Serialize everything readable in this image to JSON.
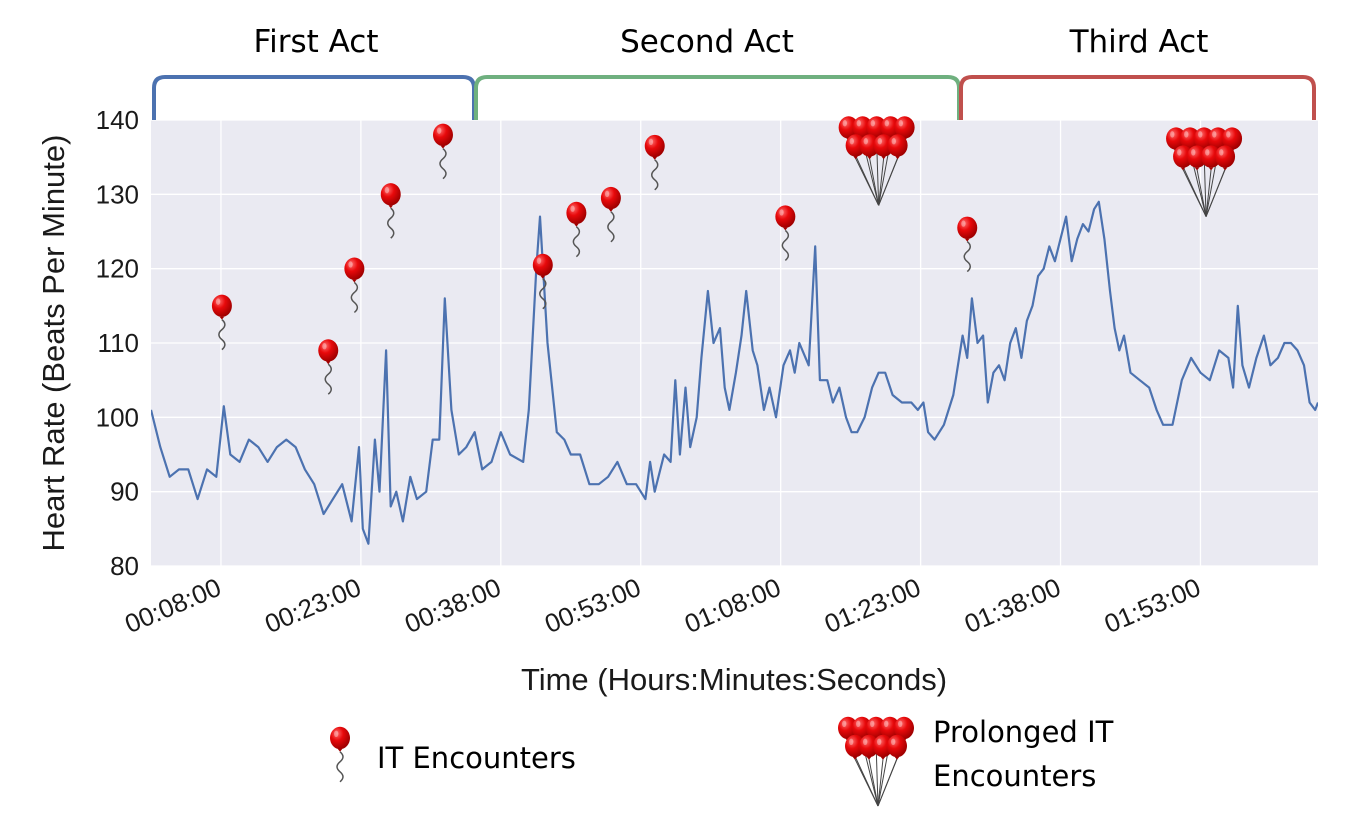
{
  "chart_data": {
    "type": "line",
    "xlabel": "Time (Hours:Minutes:Seconds)",
    "ylabel": "Heart Rate (Beats Per Minute)",
    "ylim": [
      80,
      140
    ],
    "xlim_minutes": [
      0.5,
      125.6
    ],
    "yticks": [
      80,
      90,
      100,
      110,
      120,
      130,
      140
    ],
    "xticks": [
      {
        "minute": 8,
        "label": "00:08:00"
      },
      {
        "minute": 23,
        "label": "00:23:00"
      },
      {
        "minute": 38,
        "label": "00:38:00"
      },
      {
        "minute": 53,
        "label": "00:53:00"
      },
      {
        "minute": 68,
        "label": "01:08:00"
      },
      {
        "minute": 83,
        "label": "01:23:00"
      },
      {
        "minute": 98,
        "label": "01:38:00"
      },
      {
        "minute": 113,
        "label": "01:53:00"
      }
    ],
    "grid": true,
    "series": [
      {
        "color": "#4c72b0",
        "points": [
          [
            0.5,
            101
          ],
          [
            1.5,
            96
          ],
          [
            2.5,
            92
          ],
          [
            3.5,
            93
          ],
          [
            4.5,
            93
          ],
          [
            5.5,
            89
          ],
          [
            6.5,
            93
          ],
          [
            7.5,
            92
          ],
          [
            8.3,
            101.5
          ],
          [
            9,
            95
          ],
          [
            10,
            94
          ],
          [
            11,
            97
          ],
          [
            12,
            96
          ],
          [
            13,
            94
          ],
          [
            14,
            96
          ],
          [
            15,
            97
          ],
          [
            16,
            96
          ],
          [
            17,
            93
          ],
          [
            18,
            91
          ],
          [
            19,
            87
          ],
          [
            20,
            89
          ],
          [
            21,
            91
          ],
          [
            22,
            86
          ],
          [
            22.8,
            96
          ],
          [
            23.2,
            85
          ],
          [
            23.8,
            83
          ],
          [
            24.5,
            97
          ],
          [
            25,
            90
          ],
          [
            25.7,
            109
          ],
          [
            26.2,
            88
          ],
          [
            26.8,
            90
          ],
          [
            27.5,
            86
          ],
          [
            28.3,
            92
          ],
          [
            29,
            89
          ],
          [
            30,
            90
          ],
          [
            30.7,
            97
          ],
          [
            31.4,
            97
          ],
          [
            32,
            116
          ],
          [
            32.7,
            101
          ],
          [
            33.5,
            95
          ],
          [
            34.3,
            96
          ],
          [
            35.2,
            98
          ],
          [
            36,
            93
          ],
          [
            37,
            94
          ],
          [
            38,
            98
          ],
          [
            39,
            95
          ],
          [
            40.4,
            94
          ],
          [
            41,
            101
          ],
          [
            41.8,
            120
          ],
          [
            42.2,
            127
          ],
          [
            43,
            110
          ],
          [
            44,
            98
          ],
          [
            44.8,
            97
          ],
          [
            45.5,
            95
          ],
          [
            46.5,
            95
          ],
          [
            47.5,
            91
          ],
          [
            48.5,
            91
          ],
          [
            49.5,
            92
          ],
          [
            50.5,
            94
          ],
          [
            51.5,
            91
          ],
          [
            52.5,
            91
          ],
          [
            53.5,
            89
          ],
          [
            54,
            94
          ],
          [
            54.5,
            90
          ],
          [
            55.5,
            95
          ],
          [
            56.2,
            94
          ],
          [
            56.7,
            105
          ],
          [
            57.2,
            95
          ],
          [
            57.8,
            104
          ],
          [
            58.3,
            96
          ],
          [
            59,
            100
          ],
          [
            59.5,
            108
          ],
          [
            60.2,
            117
          ],
          [
            60.8,
            110
          ],
          [
            61.5,
            112
          ],
          [
            62,
            104
          ],
          [
            62.5,
            101
          ],
          [
            63.2,
            106
          ],
          [
            63.8,
            111
          ],
          [
            64.3,
            117
          ],
          [
            65,
            109
          ],
          [
            65.5,
            107
          ],
          [
            66.2,
            101
          ],
          [
            66.8,
            104
          ],
          [
            67.5,
            100
          ],
          [
            68.3,
            107
          ],
          [
            69,
            109
          ],
          [
            69.5,
            106
          ],
          [
            70,
            110
          ],
          [
            71,
            107
          ],
          [
            71.7,
            123
          ],
          [
            72.2,
            105
          ],
          [
            73,
            105
          ],
          [
            73.6,
            102
          ],
          [
            74.3,
            104
          ],
          [
            75,
            100
          ],
          [
            75.6,
            98
          ],
          [
            76.2,
            98
          ],
          [
            77,
            100
          ],
          [
            77.8,
            104
          ],
          [
            78.5,
            106
          ],
          [
            79.2,
            106
          ],
          [
            80,
            103
          ],
          [
            81,
            102
          ],
          [
            82,
            102
          ],
          [
            82.7,
            101
          ],
          [
            83.3,
            102
          ],
          [
            83.8,
            98
          ],
          [
            84.5,
            97
          ],
          [
            85.5,
            99
          ],
          [
            86.5,
            103
          ],
          [
            87.5,
            111
          ],
          [
            88,
            108
          ],
          [
            88.5,
            116
          ],
          [
            89.1,
            110
          ],
          [
            89.7,
            111
          ],
          [
            90.2,
            102
          ],
          [
            90.8,
            106
          ],
          [
            91.4,
            107
          ],
          [
            92,
            105
          ],
          [
            92.6,
            110
          ],
          [
            93.2,
            112
          ],
          [
            93.8,
            108
          ],
          [
            94.4,
            113
          ],
          [
            95,
            115
          ],
          [
            95.6,
            119
          ],
          [
            96.2,
            120
          ],
          [
            96.8,
            123
          ],
          [
            97.4,
            121
          ],
          [
            98,
            124
          ],
          [
            98.6,
            127
          ],
          [
            99.2,
            121
          ],
          [
            99.8,
            124
          ],
          [
            100.4,
            126
          ],
          [
            101,
            125
          ],
          [
            101.6,
            128
          ],
          [
            102.1,
            129
          ],
          [
            102.7,
            124
          ],
          [
            103.3,
            117
          ],
          [
            103.8,
            112
          ],
          [
            104.3,
            109
          ],
          [
            104.8,
            111
          ],
          [
            105.5,
            106
          ],
          [
            106.5,
            105
          ],
          [
            107.5,
            104
          ],
          [
            108.3,
            101
          ],
          [
            109,
            99
          ],
          [
            110,
            99
          ],
          [
            111,
            105
          ],
          [
            112,
            108
          ],
          [
            113,
            106
          ],
          [
            114,
            105
          ],
          [
            115,
            109
          ],
          [
            116,
            108
          ],
          [
            116.5,
            104
          ],
          [
            117,
            115
          ],
          [
            117.5,
            107
          ],
          [
            118.2,
            104
          ],
          [
            119,
            108
          ],
          [
            119.8,
            111
          ],
          [
            120.5,
            107
          ],
          [
            121.3,
            108
          ],
          [
            122,
            110
          ],
          [
            122.7,
            110
          ],
          [
            123.4,
            109
          ],
          [
            124.1,
            107
          ],
          [
            124.7,
            102
          ],
          [
            125.3,
            101
          ],
          [
            125.6,
            102
          ]
        ],
        "x_scale": "minutes-mapped"
      }
    ],
    "acts": [
      {
        "label": "First Act",
        "color": "#4c72b0"
      },
      {
        "label": "Second Act",
        "color": "#6fb07f"
      },
      {
        "label": "Third Act",
        "color": "#c0504d"
      }
    ],
    "annotations": {
      "it_encounters": [
        {
          "t": 8.1,
          "bpm": 115
        },
        {
          "t": 19.5,
          "bpm": 109
        },
        {
          "t": 22.3,
          "bpm": 120
        },
        {
          "t": 26.2,
          "bpm": 130
        },
        {
          "t": 31.8,
          "bpm": 138
        },
        {
          "t": 42.5,
          "bpm": 120.5
        },
        {
          "t": 46.1,
          "bpm": 127.5
        },
        {
          "t": 49.8,
          "bpm": 129.5
        },
        {
          "t": 54.5,
          "bpm": 136.5
        },
        {
          "t": 68.5,
          "bpm": 127
        },
        {
          "t": 88,
          "bpm": 125.5
        }
      ],
      "prolonged_it_encounters": [
        {
          "t": 78.5,
          "bpm": 139
        },
        {
          "t": 113.6,
          "bpm": 137.5
        }
      ]
    },
    "legend": {
      "it_label": "IT Encounters",
      "prolonged_label_line1": "Prolonged IT",
      "prolonged_label_line2": "Encounters"
    }
  },
  "colors": {
    "plot_background": "#eaeaf2",
    "grid": "#ffffff",
    "line": "#4c72b0",
    "balloon": "#e8090b",
    "balloon_dark": "#a00000",
    "string": "#555555"
  }
}
